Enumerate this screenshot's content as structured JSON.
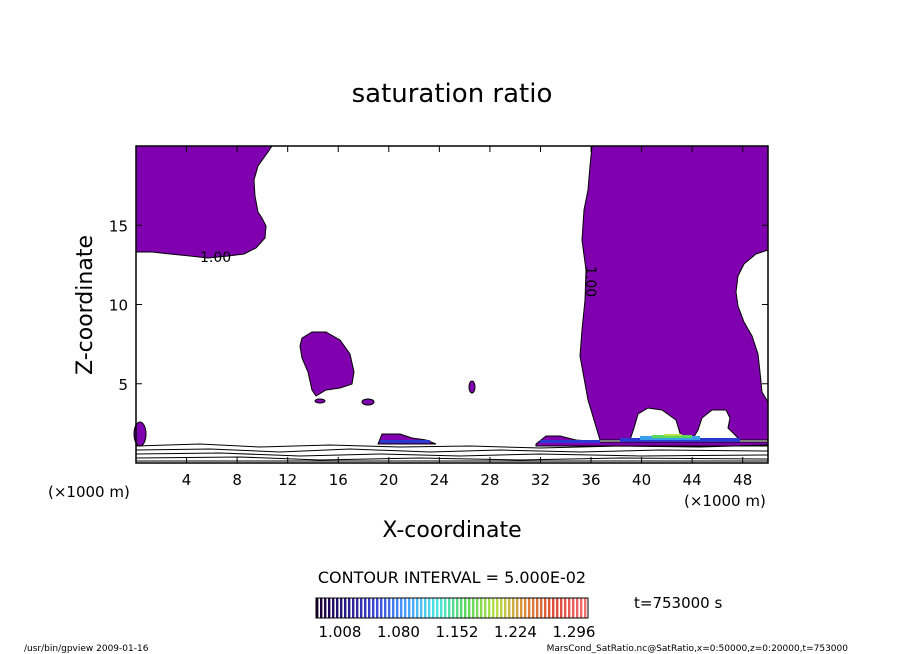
{
  "chart_data": {
    "type": "contour",
    "title": "saturation ratio",
    "xlabel": "X-coordinate",
    "ylabel": "Z-coordinate",
    "x_unit": "(×1000 m)",
    "xlim": [
      0,
      50
    ],
    "ylim": [
      0,
      20
    ],
    "x_ticks": [
      4,
      8,
      12,
      16,
      20,
      24,
      28,
      32,
      36,
      40,
      44,
      48
    ],
    "y_ticks": [
      5,
      10,
      15
    ],
    "contour_interval_label": "CONTOUR INTERVAL = 5.000E-02",
    "contour_labels": [
      "1.00",
      "1.00"
    ],
    "time_label": "t=753000 s",
    "colorbar": {
      "ticks": [
        "1.008",
        "1.080",
        "1.152",
        "1.224",
        "1.296"
      ],
      "colors": [
        "#1a0033",
        "#2a1a8c",
        "#3b4bd8",
        "#4aa0ff",
        "#4ce6e6",
        "#5ad85a",
        "#b8e04a",
        "#e08a3a",
        "#e04a3a",
        "#f07070"
      ]
    },
    "fill_color": "#8000b0",
    "footer_left": "/usr/bin/gpview   2009-01-16",
    "footer_right": "MarsCond_SatRatio.nc@SatRatio,x=0:50000,z=0:20000,t=753000"
  }
}
